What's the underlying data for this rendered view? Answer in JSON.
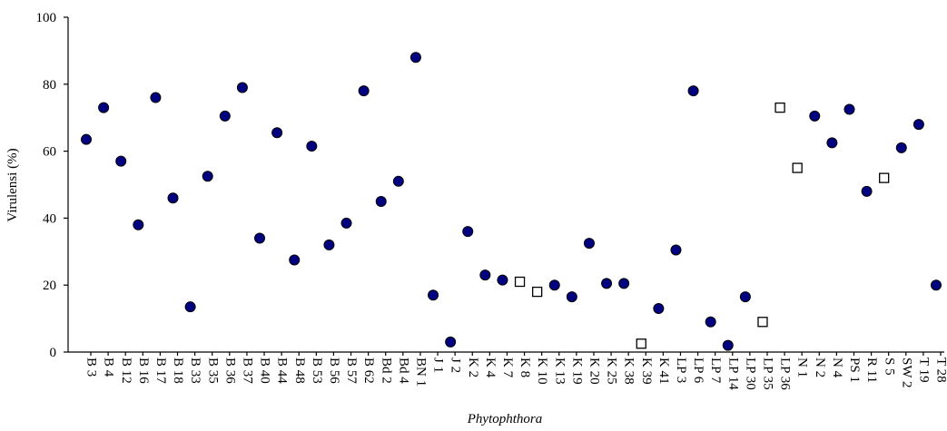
{
  "chart_data": {
    "type": "scatter",
    "x_label": "Phytophthora",
    "y_label": "Virulensi (%)",
    "categories": [
      "B 3",
      "B 4",
      "B 12",
      "B 16",
      "B 17",
      "B 18",
      "B 33",
      "B 35",
      "B 36",
      "B 37",
      "B 40",
      "B 44",
      "B 48",
      "B 53",
      "B 56",
      "B 57",
      "B 62",
      "Bd 2",
      "Bd 4",
      "BN 1",
      "J 1",
      "J 2",
      "K 2",
      "K 4",
      "K 7",
      "K 8",
      "K 10",
      "K 13",
      "K 19",
      "K 20",
      "K 25",
      "K 38",
      "K 39",
      "K 41",
      "LP 3",
      "LP 6",
      "LP 7",
      "LP 14",
      "LP 30",
      "LP 35",
      "LP 36",
      "N 1",
      "N 2",
      "N 4",
      "PS 1",
      "R 11",
      "S 5",
      "SW 2",
      "T 19",
      "T 28"
    ],
    "series": [
      {
        "marker": "circle",
        "color": "#000080",
        "values": [
          63.5,
          73,
          57,
          38,
          76,
          46,
          13.5,
          52.5,
          70.5,
          79,
          34,
          65.5,
          27.5,
          61.5,
          32,
          38.5,
          78,
          45,
          51,
          88,
          17,
          3,
          36,
          23,
          21.5,
          null,
          null,
          20,
          16.5,
          32.5,
          20.5,
          20.5,
          null,
          13,
          30.5,
          78,
          9,
          2,
          16.5,
          null,
          null,
          null,
          70.5,
          62.5,
          72.5,
          48,
          null,
          61,
          68,
          20
        ]
      },
      {
        "marker": "square",
        "color": "#ffffff",
        "values": [
          null,
          null,
          null,
          null,
          null,
          null,
          null,
          null,
          null,
          null,
          null,
          null,
          null,
          null,
          null,
          null,
          null,
          null,
          null,
          null,
          null,
          null,
          null,
          null,
          null,
          21,
          18,
          null,
          null,
          null,
          null,
          null,
          2.5,
          null,
          null,
          null,
          null,
          null,
          null,
          9,
          73,
          55,
          null,
          null,
          null,
          null,
          52,
          null,
          null,
          null
        ]
      }
    ],
    "ylim": [
      0,
      100
    ],
    "yticks": [
      0,
      20,
      40,
      60,
      80,
      100
    ],
    "grid": false
  }
}
